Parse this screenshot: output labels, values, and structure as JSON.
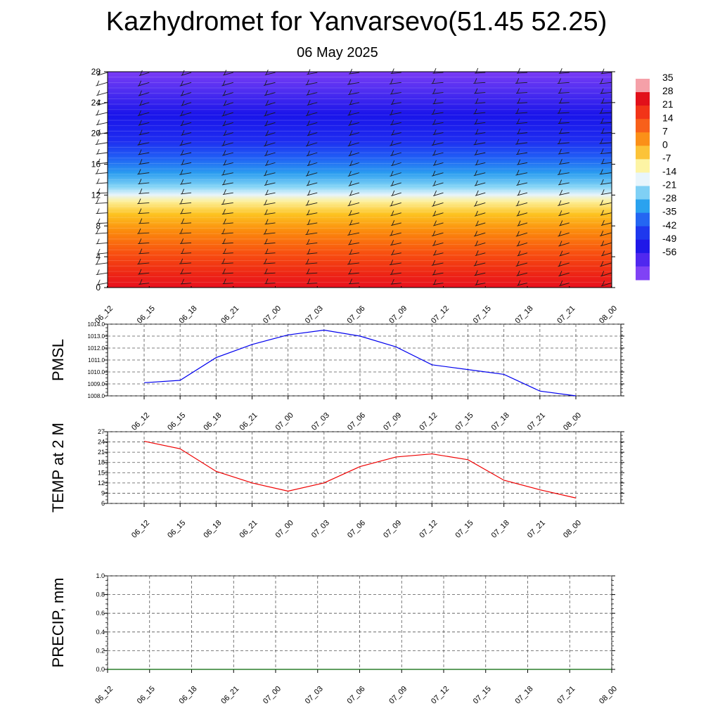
{
  "title": "Kazhydromet for Yanvarsevo(51.45 52.25)",
  "subtitle": "06 May 2025",
  "time_labels": [
    "06_12",
    "06_15",
    "06_18",
    "06_21",
    "07_00",
    "07_03",
    "07_06",
    "07_09",
    "07_12",
    "07_15",
    "07_18",
    "07_21",
    "08_00"
  ],
  "colors": {
    "pmsl_line": "#0000ee",
    "temp_line": "#ee0000",
    "precip_line": "#006400",
    "grid": "#555555"
  },
  "chart_data": [
    {
      "type": "heatmap",
      "x": [
        "06_12",
        "06_15",
        "06_18",
        "06_21",
        "07_00",
        "07_03",
        "07_06",
        "07_09",
        "07_12",
        "07_15",
        "07_18",
        "07_21",
        "08_00"
      ],
      "ylim": [
        0,
        28
      ],
      "y_ticks": [
        0,
        4,
        8,
        12,
        16,
        20,
        24,
        28
      ],
      "legend": {
        "placement": "right",
        "labels": [
          "35",
          "28",
          "21",
          "14",
          "7",
          "0",
          "-7",
          "-14",
          "-21",
          "-28",
          "-35",
          "-42",
          "-49",
          "-56"
        ]
      },
      "overlay": "wind barbs"
    },
    {
      "type": "line",
      "ylabel": "PMSL",
      "x": [
        "06_12",
        "06_15",
        "06_18",
        "06_21",
        "07_00",
        "07_03",
        "07_06",
        "07_09",
        "07_12",
        "07_15",
        "07_18",
        "07_21",
        "08_00"
      ],
      "ylim": [
        1008.0,
        1014.0
      ],
      "y_ticks": [
        "1008.0",
        "1009.0",
        "1010.0",
        "1011.0",
        "1012.0",
        "1013.0",
        "1014.0"
      ],
      "series": [
        {
          "values": [
            1009.1,
            1009.3,
            1011.2,
            1012.3,
            1013.1,
            1013.5,
            1013.0,
            1012.1,
            1010.6,
            1010.2,
            1009.8,
            1008.4,
            1008.0
          ]
        }
      ]
    },
    {
      "type": "line",
      "ylabel": "TEMP at 2 M",
      "x": [
        "06_12",
        "06_15",
        "06_18",
        "06_21",
        "07_00",
        "07_03",
        "07_06",
        "07_09",
        "07_12",
        "07_15",
        "07_18",
        "07_21",
        "08_00"
      ],
      "ylim": [
        6,
        27
      ],
      "y_ticks": [
        "6",
        "9",
        "12",
        "15",
        "18",
        "21",
        "24",
        "27"
      ],
      "series": [
        {
          "values": [
            24.2,
            22.0,
            15.4,
            12.0,
            9.6,
            12.0,
            16.8,
            19.6,
            20.5,
            18.8,
            12.8,
            10.0,
            7.6
          ]
        }
      ]
    },
    {
      "type": "line",
      "ylabel": "PRECIP, mm",
      "x": [
        "06_12",
        "06_15",
        "06_18",
        "06_21",
        "07_00",
        "07_03",
        "07_06",
        "07_09",
        "07_12",
        "07_15",
        "07_18",
        "07_21",
        "08_00"
      ],
      "ylim": [
        0.0,
        1.0
      ],
      "y_ticks": [
        "0.0",
        "0.2",
        "0.4",
        "0.6",
        "0.8",
        "1.0"
      ],
      "series": [
        {
          "values": [
            0,
            0,
            0,
            0,
            0,
            0,
            0,
            0,
            0,
            0,
            0,
            0,
            0
          ]
        }
      ]
    }
  ]
}
